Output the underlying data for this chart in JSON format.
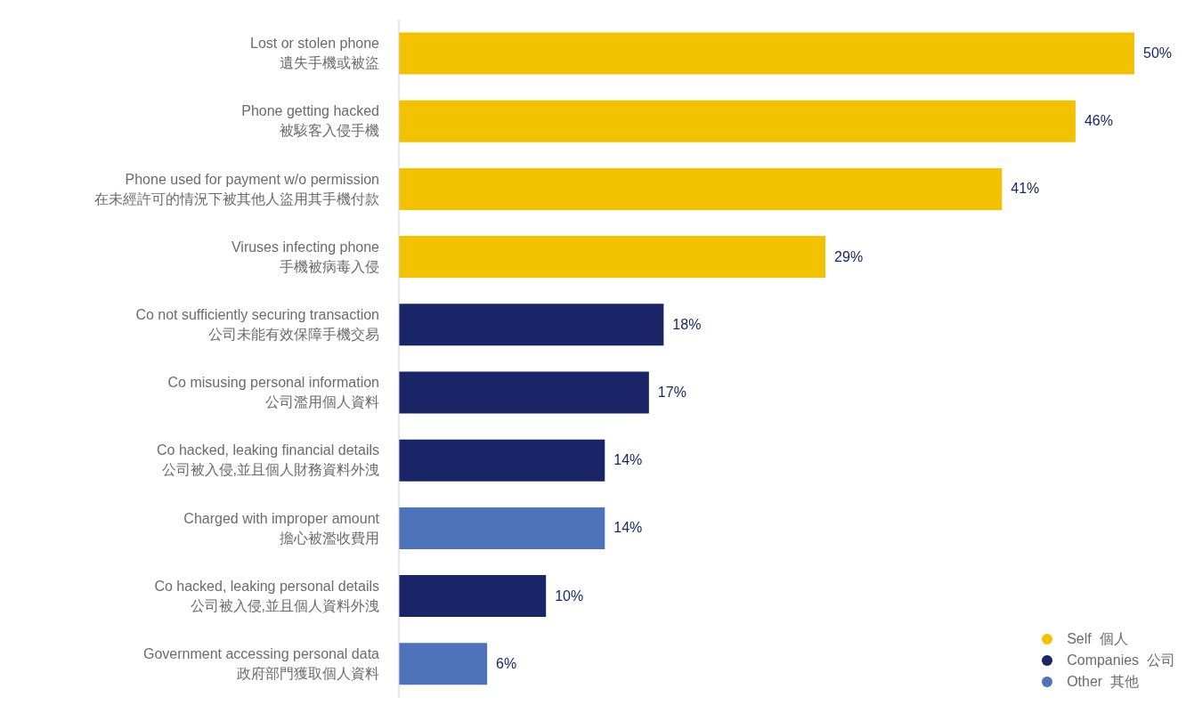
{
  "chart_data": {
    "type": "bar",
    "orientation": "horizontal",
    "stacked": true,
    "tick_labels": "y",
    "legend": "bottom right",
    "categories": [
      "Lost or stolen phone\n遺失手機或被盜",
      "Phone getting hacked\n被駭客入侵手機",
      "Phone used for payment w/o permission\n在未經許可的情況下被其他人盜用其手機付款",
      "Viruses infecting phone\n手機被病毒入侵",
      "Co not sufficiently securing transaction\n公司未能有效保障手機交易",
      "Co misusing personal information\n公司濫用個人資料",
      "Co hacked, leaking financial details\n公司被入侵,並且個人財務資料外洩",
      "Charged with improper amount\n擔心被濫收費用",
      "Co hacked, leaking personal details\n公司被入侵,並且個人資料外洩",
      "Government accessing personal data\n政府部門獲取個人資料"
    ],
    "series": [
      {
        "name": "Self  個人",
        "color": "#f2c100",
        "values": [
          50,
          46,
          41,
          29,
          null,
          null,
          null,
          null,
          null,
          null
        ],
        "value_labels": [
          "50%",
          "46%",
          "41%",
          "29%",
          null,
          null,
          null,
          null,
          null,
          null
        ]
      },
      {
        "name": "Companies  公司",
        "color": "#1a2568",
        "values": [
          null,
          null,
          null,
          null,
          18,
          17,
          14,
          null,
          10,
          null
        ],
        "value_labels": [
          null,
          null,
          null,
          null,
          "18%",
          "17%",
          "14%",
          null,
          "10%",
          null
        ]
      },
      {
        "name": "Other  其他",
        "color": "#4d74bb",
        "values": [
          null,
          null,
          null,
          null,
          null,
          null,
          null,
          14,
          null,
          6
        ],
        "value_labels": [
          null,
          null,
          null,
          null,
          null,
          null,
          null,
          "14%",
          null,
          "6%"
        ]
      }
    ]
  }
}
